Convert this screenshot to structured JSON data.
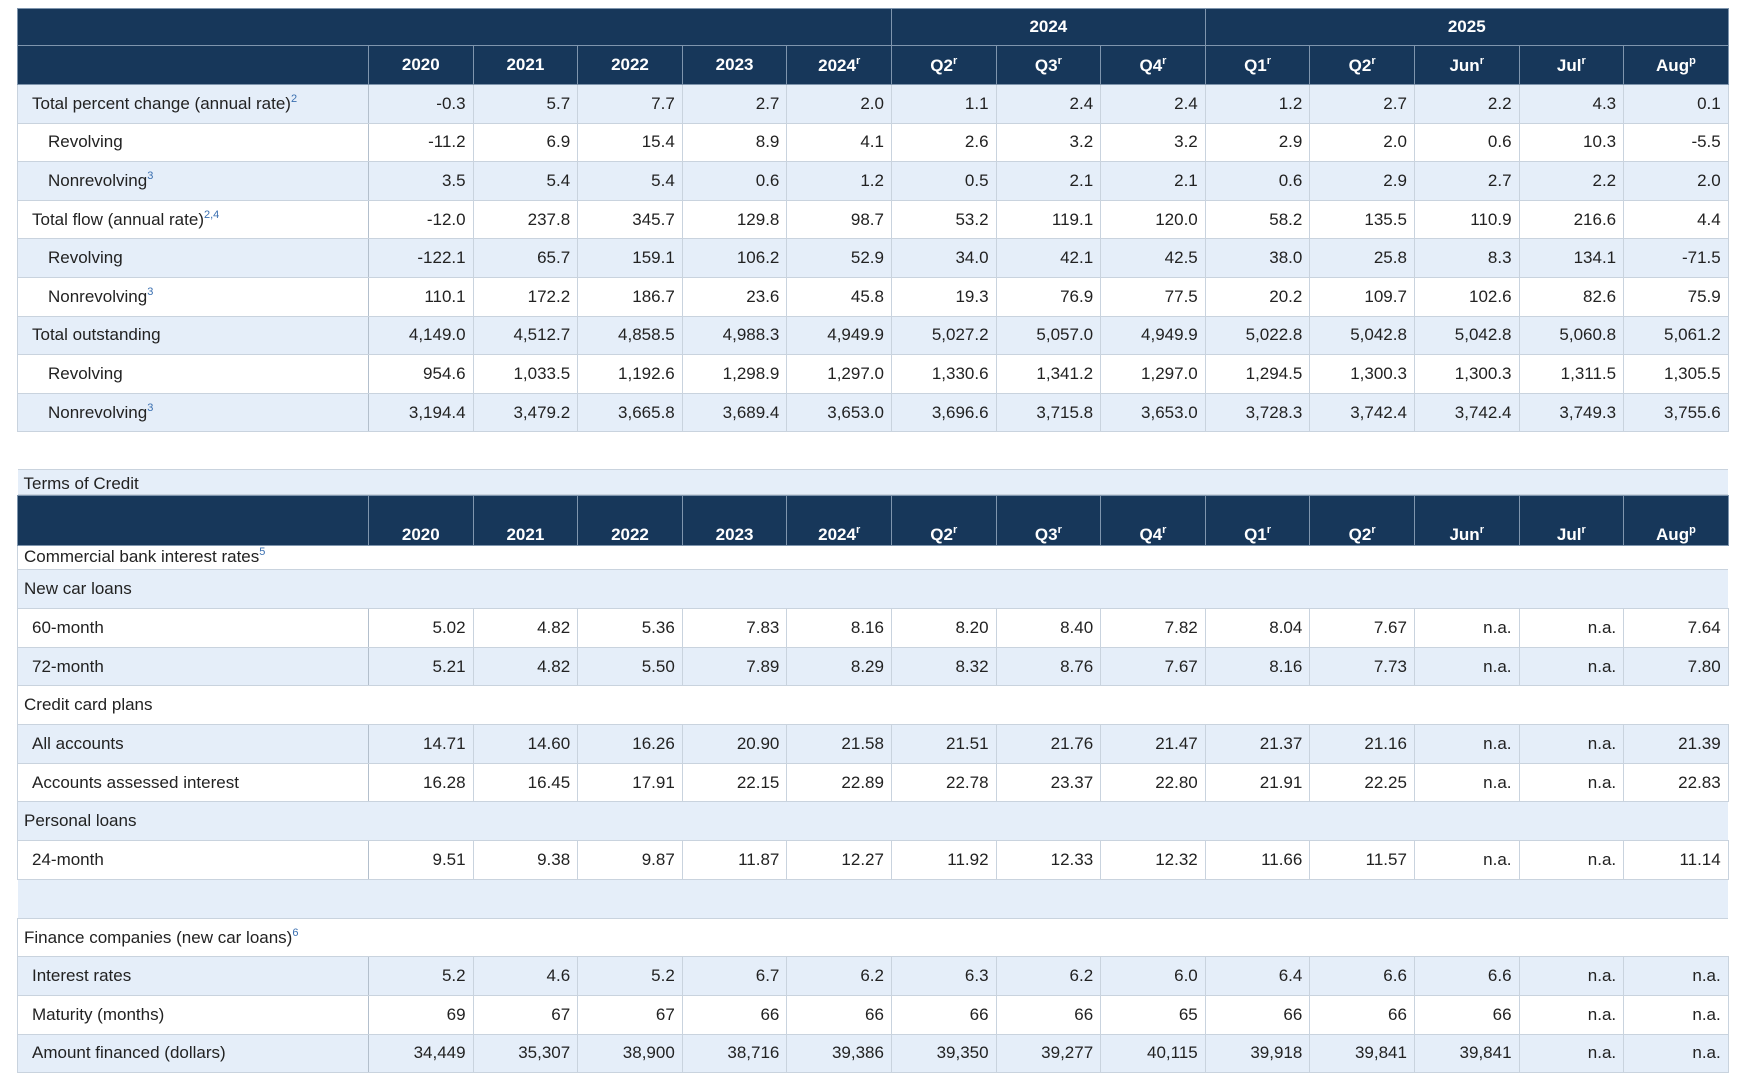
{
  "header": {
    "groups": [
      "2024",
      "2025"
    ],
    "columns": [
      {
        "label": "2020"
      },
      {
        "label": "2021"
      },
      {
        "label": "2022"
      },
      {
        "label": "2023"
      },
      {
        "label": "2024",
        "sup": "r"
      },
      {
        "label": "Q2",
        "sup": "r"
      },
      {
        "label": "Q3",
        "sup": "r"
      },
      {
        "label": "Q4",
        "sup": "r"
      },
      {
        "label": "Q1",
        "sup": "r"
      },
      {
        "label": "Q2",
        "sup": "r"
      },
      {
        "label": "Jun",
        "sup": "r"
      },
      {
        "label": "Jul",
        "sup": "r"
      },
      {
        "label": "Aug",
        "sup": "p"
      }
    ]
  },
  "summary": [
    {
      "label": "Total percent change (annual rate)",
      "sup": "2",
      "values": [
        "-0.3",
        "5.7",
        "7.7",
        "2.7",
        "2.0",
        "1.1",
        "2.4",
        "2.4",
        "1.2",
        "2.7",
        "2.2",
        "4.3",
        "0.1"
      ],
      "rows": [
        {
          "label": "Revolving",
          "values": [
            "-11.2",
            "6.9",
            "15.4",
            "8.9",
            "4.1",
            "2.6",
            "3.2",
            "3.2",
            "2.9",
            "2.0",
            "0.6",
            "10.3",
            "-5.5"
          ]
        },
        {
          "label": "Nonrevolving",
          "sup": "3",
          "values": [
            "3.5",
            "5.4",
            "5.4",
            "0.6",
            "1.2",
            "0.5",
            "2.1",
            "2.1",
            "0.6",
            "2.9",
            "2.7",
            "2.2",
            "2.0"
          ]
        }
      ]
    },
    {
      "label": "Total flow (annual rate)",
      "sup": "2,4",
      "values": [
        "-12.0",
        "237.8",
        "345.7",
        "129.8",
        "98.7",
        "53.2",
        "119.1",
        "120.0",
        "58.2",
        "135.5",
        "110.9",
        "216.6",
        "4.4"
      ],
      "rows": [
        {
          "label": "Revolving",
          "values": [
            "-122.1",
            "65.7",
            "159.1",
            "106.2",
            "52.9",
            "34.0",
            "42.1",
            "42.5",
            "38.0",
            "25.8",
            "8.3",
            "134.1",
            "-71.5"
          ]
        },
        {
          "label": "Nonrevolving",
          "sup": "3",
          "values": [
            "110.1",
            "172.2",
            "186.7",
            "23.6",
            "45.8",
            "19.3",
            "76.9",
            "77.5",
            "20.2",
            "109.7",
            "102.6",
            "82.6",
            "75.9"
          ]
        }
      ]
    },
    {
      "label": "Total outstanding",
      "values": [
        "4,149.0",
        "4,512.7",
        "4,858.5",
        "4,988.3",
        "4,949.9",
        "5,027.2",
        "5,057.0",
        "4,949.9",
        "5,022.8",
        "5,042.8",
        "5,042.8",
        "5,060.8",
        "5,061.2"
      ],
      "rows": [
        {
          "label": "Revolving",
          "values": [
            "954.6",
            "1,033.5",
            "1,192.6",
            "1,298.9",
            "1,297.0",
            "1,330.6",
            "1,341.2",
            "1,297.0",
            "1,294.5",
            "1,300.3",
            "1,300.3",
            "1,311.5",
            "1,305.5"
          ]
        },
        {
          "label": "Nonrevolving",
          "sup": "3",
          "values": [
            "3,194.4",
            "3,479.2",
            "3,665.8",
            "3,689.4",
            "3,653.0",
            "3,696.6",
            "3,715.8",
            "3,653.0",
            "3,728.3",
            "3,742.4",
            "3,742.4",
            "3,749.3",
            "3,755.6"
          ]
        }
      ]
    }
  ],
  "terms": {
    "title": "Terms of Credit",
    "subtitle": {
      "label": "Commercial bank interest rates",
      "sup": "5"
    },
    "groups": [
      {
        "label": "New car loans",
        "rows": [
          {
            "label": "60-month",
            "values": [
              "5.02",
              "4.82",
              "5.36",
              "7.83",
              "8.16",
              "8.20",
              "8.40",
              "7.82",
              "8.04",
              "7.67",
              "n.a.",
              "n.a.",
              "7.64"
            ]
          },
          {
            "label": "72-month",
            "values": [
              "5.21",
              "4.82",
              "5.50",
              "7.89",
              "8.29",
              "8.32",
              "8.76",
              "7.67",
              "8.16",
              "7.73",
              "n.a.",
              "n.a.",
              "7.80"
            ]
          }
        ]
      },
      {
        "label": "Credit card plans",
        "rows": [
          {
            "label": "All accounts",
            "values": [
              "14.71",
              "14.60",
              "16.26",
              "20.90",
              "21.58",
              "21.51",
              "21.76",
              "21.47",
              "21.37",
              "21.16",
              "n.a.",
              "n.a.",
              "21.39"
            ]
          },
          {
            "label": "Accounts assessed interest",
            "values": [
              "16.28",
              "16.45",
              "17.91",
              "22.15",
              "22.89",
              "22.78",
              "23.37",
              "22.80",
              "21.91",
              "22.25",
              "n.a.",
              "n.a.",
              "22.83"
            ]
          }
        ]
      },
      {
        "label": "Personal loans",
        "rows": [
          {
            "label": "24-month",
            "values": [
              "9.51",
              "9.38",
              "9.87",
              "11.87",
              "12.27",
              "11.92",
              "12.33",
              "12.32",
              "11.66",
              "11.57",
              "n.a.",
              "n.a.",
              "11.14"
            ]
          }
        ]
      }
    ],
    "finance": {
      "label": "Finance companies (new car loans)",
      "sup": "6",
      "rows": [
        {
          "label": "Interest rates",
          "values": [
            "5.2",
            "4.6",
            "5.2",
            "6.7",
            "6.2",
            "6.3",
            "6.2",
            "6.0",
            "6.4",
            "6.6",
            "6.6",
            "n.a.",
            "n.a."
          ]
        },
        {
          "label": "Maturity (months)",
          "values": [
            "69",
            "67",
            "67",
            "66",
            "66",
            "66",
            "66",
            "65",
            "66",
            "66",
            "66",
            "n.a.",
            "n.a."
          ]
        },
        {
          "label": "Amount financed (dollars)",
          "values": [
            "34,449",
            "35,307",
            "38,900",
            "38,716",
            "39,386",
            "39,350",
            "39,277",
            "40,115",
            "39,918",
            "39,841",
            "39,841",
            "n.a.",
            "n.a."
          ]
        }
      ]
    }
  }
}
